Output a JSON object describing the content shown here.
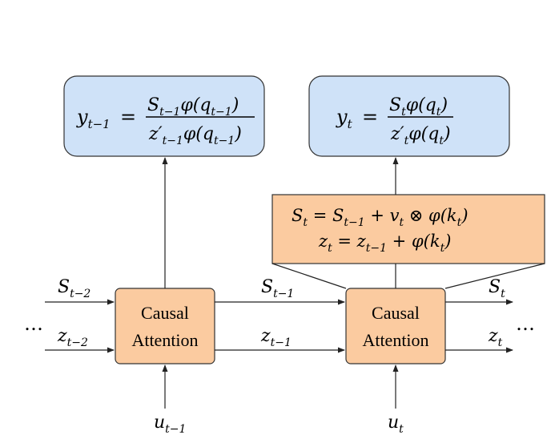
{
  "output_left": {
    "lhs": "y",
    "sub": "t−1",
    "eq": "=",
    "num": "S",
    "num_sub": "t−1",
    "num_rest": "φ(q",
    "num_rest_sub": "t−1",
    "num_close": ")",
    "den": "z′",
    "den_sub": "t−1",
    "den_rest": "φ(q",
    "den_rest_sub": "t−1",
    "den_close": ")"
  },
  "output_right": {
    "lhs": "y",
    "sub": "t",
    "eq": "=",
    "num": "S",
    "num_sub": "t",
    "num_rest": "φ(q",
    "num_rest_sub": "t",
    "num_close": ")",
    "den": "z′",
    "den_sub": "t",
    "den_rest": "φ(q",
    "den_rest_sub": "t",
    "den_close": ")"
  },
  "update_box": {
    "line1": {
      "a": "S",
      "a_sub": "t",
      "b": " = S",
      "b_sub": "t−1",
      "c": " + v",
      "c_sub": "t",
      "d": " ⊗ φ(k",
      "d_sub": "t",
      "e": ")"
    },
    "line2": {
      "a": "z",
      "a_sub": "t",
      "b": " = z",
      "b_sub": "t−1",
      "c": " + φ(k",
      "c_sub": "t",
      "d": ")"
    }
  },
  "causal_block_left": {
    "line1": "Causal",
    "line2": "Attention"
  },
  "causal_block_right": {
    "line1": "Causal",
    "line2": "Attention"
  },
  "labels": {
    "s_in_left": {
      "base": "S",
      "sub": "t−2"
    },
    "z_in_left": {
      "base": "z",
      "sub": "t−2"
    },
    "s_mid": {
      "base": "S",
      "sub": "t−1"
    },
    "z_mid": {
      "base": "z",
      "sub": "t−1"
    },
    "s_out": {
      "base": "S",
      "sub": "t"
    },
    "z_out": {
      "base": "z",
      "sub": "t"
    },
    "u_left": {
      "base": "u",
      "sub": "t−1"
    },
    "u_right": {
      "base": "u",
      "sub": "t"
    },
    "ellipsis_left": "…",
    "ellipsis_right": "…"
  },
  "colors": {
    "output_fill": "#cfe2f8",
    "block_fill": "#fbcba0"
  }
}
